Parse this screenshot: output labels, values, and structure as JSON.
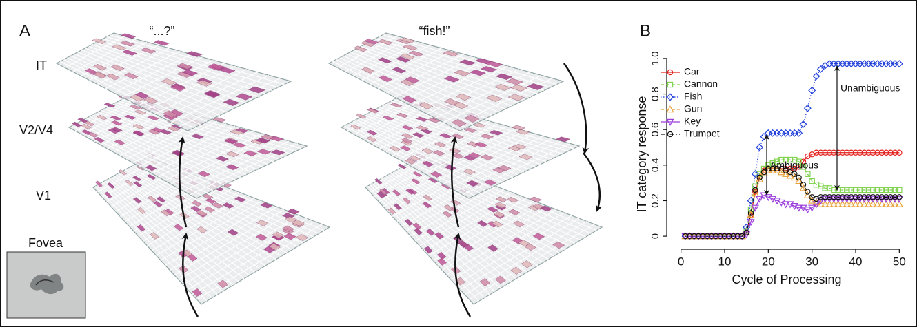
{
  "panel_a": {
    "label": "A",
    "left_title": "“...?”",
    "right_title": "“fish!”",
    "layers": [
      "IT",
      "V2/V4",
      "V1"
    ],
    "fovea": "Fovea"
  },
  "panel_b": {
    "label": "B"
  },
  "chart_data": {
    "type": "line",
    "xlabel": "Cycle of Processing",
    "ylabel": "IT category response",
    "annotations": [
      "Ambiguous",
      "Unambiguous"
    ],
    "x": [
      1,
      2,
      3,
      4,
      5,
      6,
      7,
      8,
      9,
      10,
      11,
      12,
      13,
      14,
      15,
      16,
      17,
      18,
      19,
      20,
      21,
      22,
      23,
      24,
      25,
      26,
      27,
      28,
      29,
      30,
      31,
      32,
      33,
      34,
      35,
      36,
      37,
      38,
      39,
      40,
      41,
      42,
      43,
      44,
      45,
      46,
      47,
      48,
      49,
      50
    ],
    "xlim": [
      -2,
      52
    ],
    "xticks": [
      0,
      10,
      20,
      30,
      40,
      50
    ],
    "ylim": [
      -0.05,
      1.05
    ],
    "yticks": [
      0,
      0.2,
      0.4,
      0.6,
      0.8,
      {
        "value": 1,
        "label": "1.0"
      }
    ],
    "series": [
      {
        "name": "Car",
        "color": "#e3201c",
        "marker": "circle",
        "line_style": "solid",
        "values": [
          0,
          0,
          0,
          0,
          0,
          0,
          0,
          0,
          0,
          0,
          0,
          0,
          0,
          0,
          0.02,
          0.12,
          0.25,
          0.33,
          0.37,
          0.38,
          0.38,
          0.38,
          0.38,
          0.38,
          0.38,
          0.38,
          0.39,
          0.42,
          0.45,
          0.46,
          0.47,
          0.47,
          0.47,
          0.47,
          0.47,
          0.47,
          0.47,
          0.47,
          0.47,
          0.47,
          0.47,
          0.47,
          0.47,
          0.47,
          0.47,
          0.47,
          0.47,
          0.47,
          0.47,
          0.47
        ]
      },
      {
        "name": "Cannon",
        "color": "#7fd34e",
        "marker": "square",
        "line_style": "dashed",
        "values": [
          0,
          0,
          0,
          0,
          0,
          0,
          0,
          0,
          0,
          0,
          0,
          0,
          0,
          0,
          0.03,
          0.15,
          0.28,
          0.35,
          0.38,
          0.4,
          0.41,
          0.42,
          0.43,
          0.43,
          0.43,
          0.43,
          0.42,
          0.39,
          0.35,
          0.31,
          0.29,
          0.28,
          0.27,
          0.27,
          0.26,
          0.26,
          0.26,
          0.26,
          0.26,
          0.26,
          0.26,
          0.26,
          0.26,
          0.26,
          0.26,
          0.26,
          0.26,
          0.26,
          0.26,
          0.26
        ]
      },
      {
        "name": "Fish",
        "color": "#1f3fd8",
        "marker": "diamond",
        "line_style": "dotted",
        "values": [
          0,
          0,
          0,
          0,
          0,
          0,
          0,
          0,
          0,
          0,
          0,
          0,
          0,
          0,
          0.05,
          0.2,
          0.35,
          0.5,
          0.56,
          0.58,
          0.58,
          0.58,
          0.58,
          0.58,
          0.58,
          0.58,
          0.58,
          0.63,
          0.72,
          0.82,
          0.9,
          0.94,
          0.96,
          0.97,
          0.97,
          0.97,
          0.97,
          0.97,
          0.97,
          0.97,
          0.97,
          0.97,
          0.97,
          0.97,
          0.97,
          0.97,
          0.97,
          0.97,
          0.97,
          0.97
        ]
      },
      {
        "name": "Gun",
        "color": "#e8a33a",
        "marker": "triangle-up",
        "line_style": "dashed",
        "values": [
          0,
          0,
          0,
          0,
          0,
          0,
          0,
          0,
          0,
          0,
          0,
          0,
          0,
          0,
          0.02,
          0.12,
          0.24,
          0.32,
          0.36,
          0.37,
          0.37,
          0.37,
          0.36,
          0.35,
          0.34,
          0.33,
          0.31,
          0.27,
          0.23,
          0.2,
          0.19,
          0.18,
          0.18,
          0.18,
          0.18,
          0.18,
          0.18,
          0.18,
          0.18,
          0.18,
          0.18,
          0.18,
          0.18,
          0.18,
          0.18,
          0.18,
          0.18,
          0.18,
          0.18,
          0.18
        ]
      },
      {
        "name": "Key",
        "color": "#9b3fdc",
        "marker": "triangle-down",
        "line_style": "solid",
        "values": [
          0,
          0,
          0,
          0,
          0,
          0,
          0,
          0,
          0,
          0,
          0,
          0,
          0,
          0,
          0.01,
          0.08,
          0.16,
          0.21,
          0.23,
          0.22,
          0.21,
          0.2,
          0.19,
          0.18,
          0.18,
          0.17,
          0.16,
          0.16,
          0.15,
          0.16,
          0.18,
          0.2,
          0.21,
          0.21,
          0.21,
          0.21,
          0.21,
          0.21,
          0.21,
          0.21,
          0.21,
          0.21,
          0.21,
          0.21,
          0.21,
          0.21,
          0.21,
          0.21,
          0.21,
          0.21
        ]
      },
      {
        "name": "Trumpet",
        "color": "#111111",
        "marker": "circle",
        "line_style": "dashdot",
        "values": [
          0,
          0,
          0,
          0,
          0,
          0,
          0,
          0,
          0,
          0,
          0,
          0,
          0,
          0,
          0.02,
          0.13,
          0.26,
          0.33,
          0.36,
          0.38,
          0.38,
          0.38,
          0.38,
          0.37,
          0.36,
          0.35,
          0.33,
          0.29,
          0.25,
          0.22,
          0.21,
          0.22,
          0.22,
          0.22,
          0.22,
          0.22,
          0.22,
          0.22,
          0.22,
          0.22,
          0.22,
          0.22,
          0.22,
          0.22,
          0.22,
          0.22,
          0.22,
          0.22,
          0.22,
          0.22
        ]
      }
    ]
  }
}
